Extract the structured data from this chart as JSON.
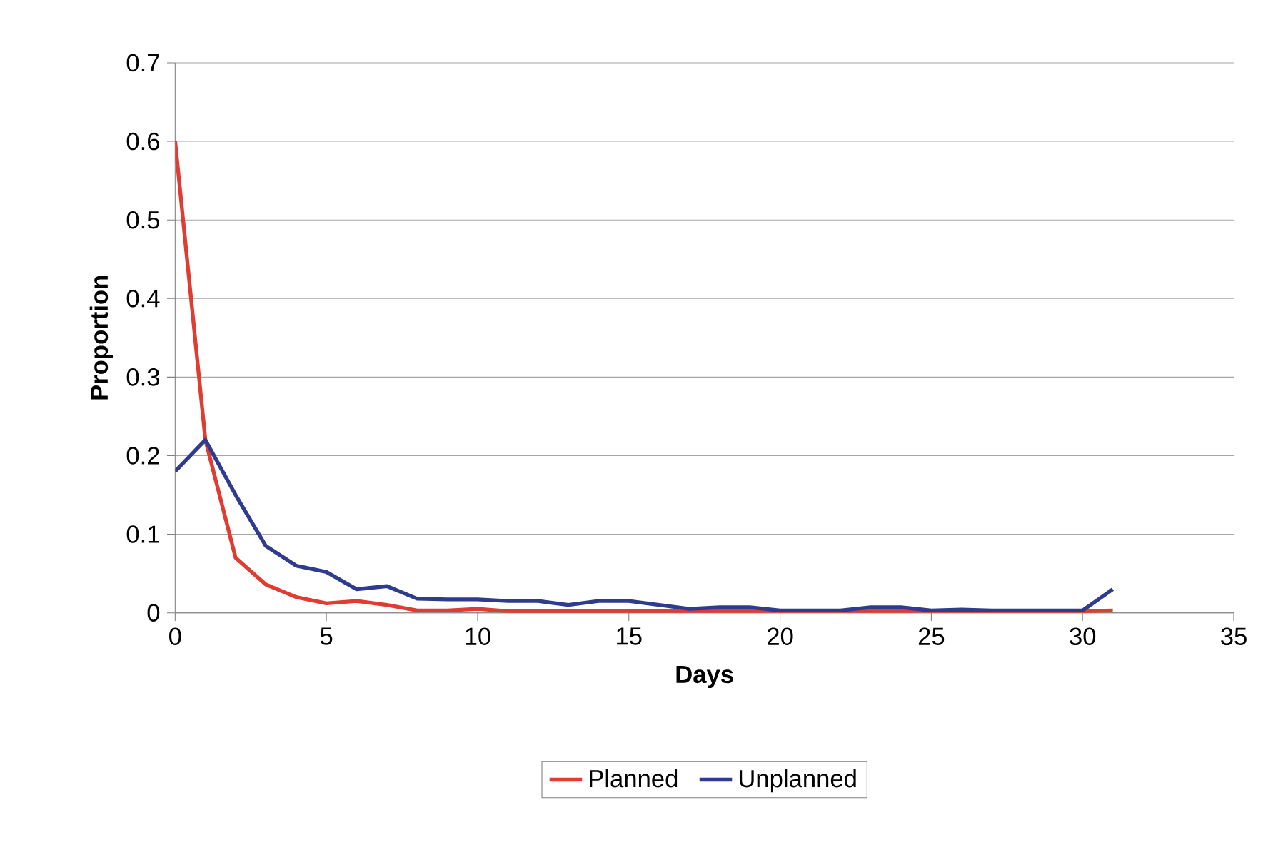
{
  "chart_data": {
    "type": "line",
    "xlabel": "Days",
    "ylabel": "Proportion",
    "x": [
      0,
      1,
      2,
      3,
      4,
      5,
      6,
      7,
      8,
      9,
      10,
      11,
      12,
      13,
      14,
      15,
      16,
      17,
      18,
      19,
      20,
      21,
      22,
      23,
      24,
      25,
      26,
      27,
      28,
      29,
      30,
      31
    ],
    "series": [
      {
        "name": "Planned",
        "color": "#e03c31",
        "values": [
          0.6,
          0.22,
          0.07,
          0.036,
          0.02,
          0.012,
          0.015,
          0.01,
          0.003,
          0.003,
          0.005,
          0.002,
          0.002,
          0.002,
          0.002,
          0.002,
          0.002,
          0.002,
          0.002,
          0.002,
          0.002,
          0.002,
          0.002,
          0.002,
          0.002,
          0.002,
          0.002,
          0.002,
          0.002,
          0.002,
          0.002,
          0.003
        ]
      },
      {
        "name": "Unplanned",
        "color": "#2e3b8f",
        "values": [
          0.18,
          0.22,
          0.15,
          0.085,
          0.06,
          0.052,
          0.03,
          0.034,
          0.018,
          0.017,
          0.017,
          0.015,
          0.015,
          0.01,
          0.015,
          0.015,
          0.01,
          0.005,
          0.007,
          0.007,
          0.003,
          0.003,
          0.003,
          0.007,
          0.007,
          0.003,
          0.004,
          0.003,
          0.003,
          0.003,
          0.003,
          0.03
        ]
      }
    ],
    "xlim": [
      0,
      35
    ],
    "xticks": [
      0,
      5,
      10,
      15,
      20,
      25,
      30,
      35
    ],
    "ylim": [
      0,
      0.7
    ],
    "yticks": [
      0,
      0.1,
      0.2,
      0.3,
      0.4,
      0.5,
      0.6,
      0.7
    ],
    "grid": "y",
    "legend": "bottom",
    "marker": "none",
    "line_style": "solid"
  }
}
